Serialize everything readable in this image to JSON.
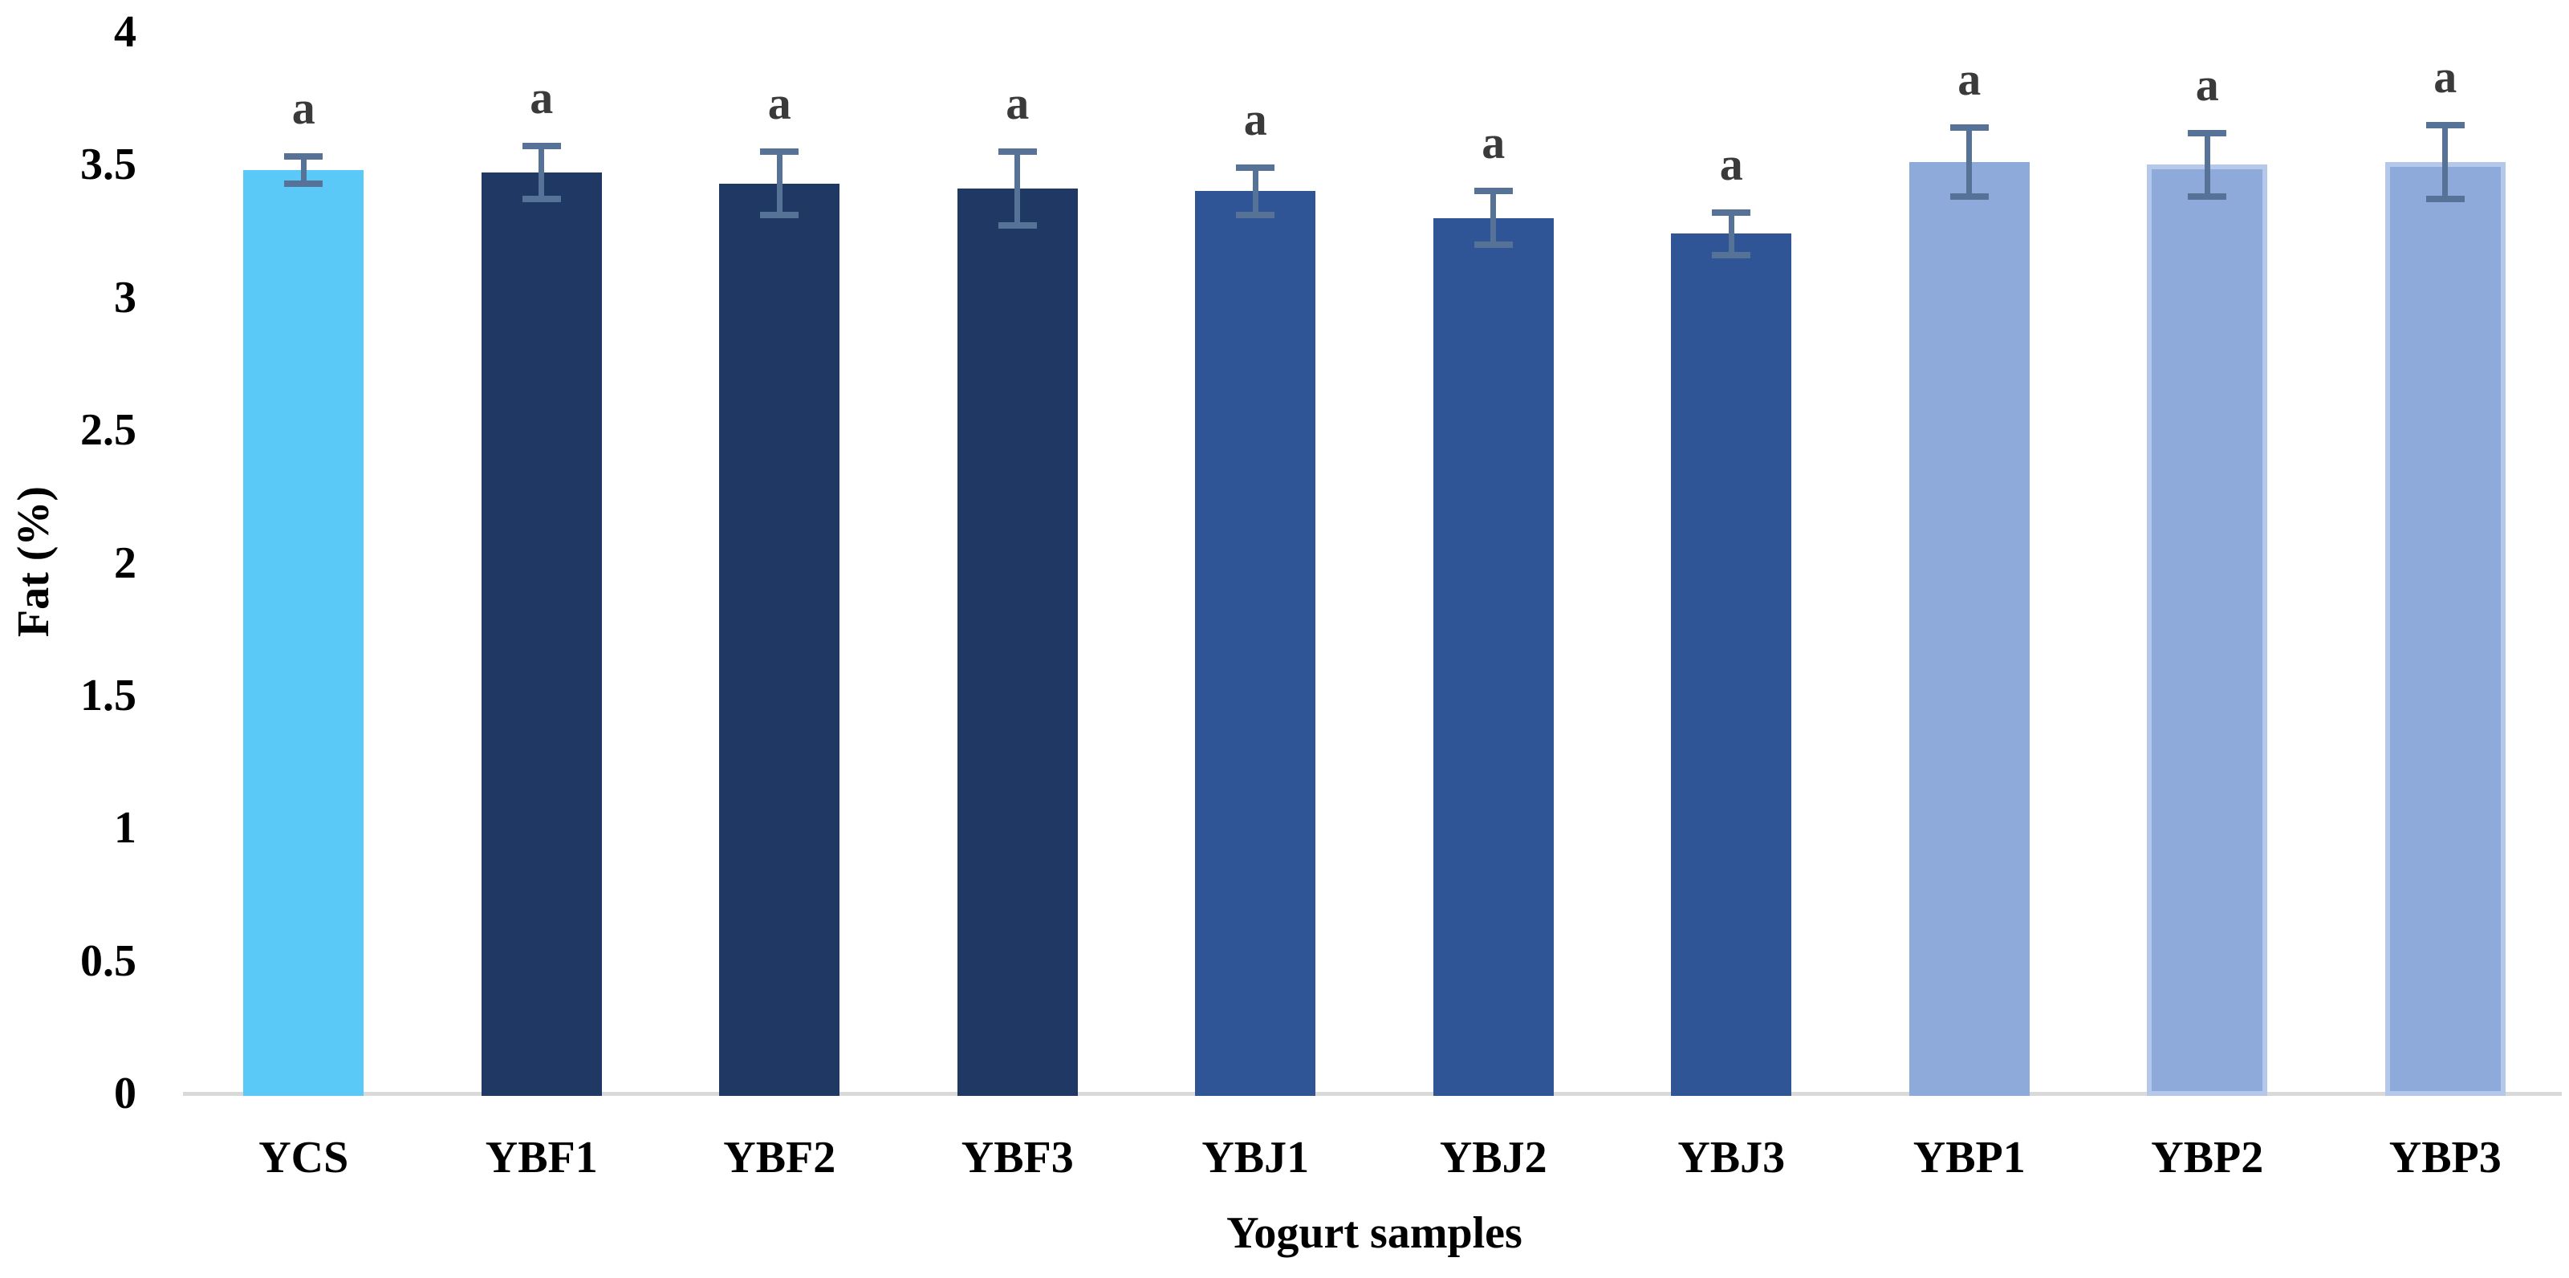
{
  "chart_data": {
    "type": "bar",
    "title": "",
    "xlabel": "Yogurt samples",
    "ylabel": "Fat (%)",
    "ylim": [
      0,
      4
    ],
    "ytick_step": 0.5,
    "ytick_labels": [
      "0",
      "0.5",
      "1",
      "1.5",
      "2",
      "2.5",
      "3",
      "3.5",
      "4"
    ],
    "grid": false,
    "legend_position": "none",
    "categories": [
      "YCS",
      "YBF1",
      "YBF2",
      "YBF3",
      "YBJ1",
      "YBJ2",
      "YBJ3",
      "YBP1",
      "YBP2",
      "YBP3"
    ],
    "series": [
      {
        "name": "Fat (%)",
        "values": [
          3.48,
          3.47,
          3.43,
          3.41,
          3.4,
          3.3,
          3.24,
          3.51,
          3.5,
          3.51
        ],
        "error_bars": [
          0.05,
          0.1,
          0.12,
          0.14,
          0.09,
          0.1,
          0.08,
          0.13,
          0.12,
          0.14
        ],
        "significance_letters": [
          "a",
          "a",
          "a",
          "a",
          "a",
          "a",
          "a",
          "a",
          "a",
          "a"
        ]
      }
    ],
    "bar_colors": [
      "#5BC9F7",
      "#1F3864",
      "#1F3864",
      "#1F3864",
      "#2F5597",
      "#2F5597",
      "#2F5597",
      "#8EAADB",
      "#8EAADB",
      "#8EAADB"
    ],
    "bar_border_colors": [
      null,
      null,
      null,
      null,
      null,
      null,
      null,
      null,
      "#B6C8E9",
      "#B6C8E9"
    ],
    "colors": {
      "axis_line": "#D9D9D9",
      "error_bar": "#567296",
      "significance_letter": "#3A3A3A",
      "tick_label": "#000000"
    }
  }
}
